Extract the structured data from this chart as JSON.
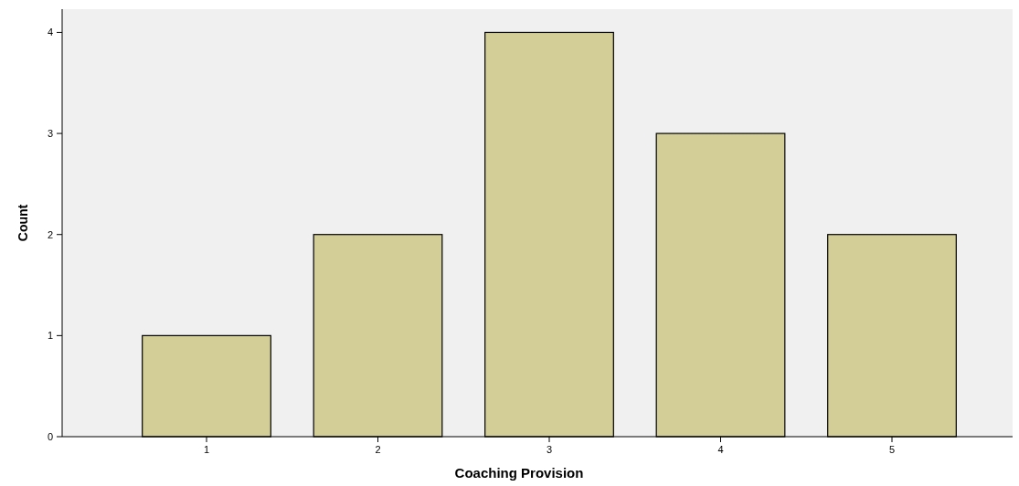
{
  "chart_data": {
    "type": "bar",
    "xlabel": "Coaching Provision",
    "ylabel": "Count",
    "categories": [
      "1",
      "2",
      "3",
      "4",
      "5"
    ],
    "values": [
      1,
      2,
      4,
      3,
      2
    ],
    "color": "#d3ce97",
    "ylim": [
      0,
      4.23
    ],
    "yticks": [
      0,
      1,
      2,
      3,
      4
    ],
    "grid": false
  }
}
